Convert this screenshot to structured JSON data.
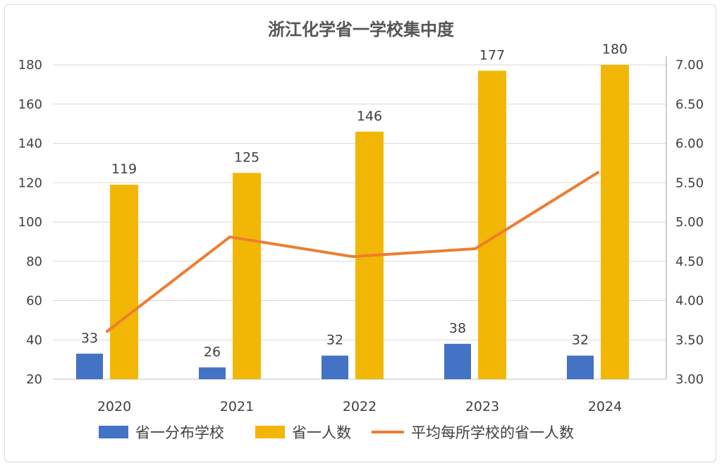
{
  "chart_data": {
    "type": "bar",
    "title": "浙江化学省一学校集中度",
    "categories": [
      "2020",
      "2021",
      "2022",
      "2023",
      "2024"
    ],
    "series": [
      {
        "name": "省一分布学校",
        "kind": "bar",
        "axis": "left",
        "color": "#4472C4",
        "values": [
          33,
          26,
          32,
          38,
          32
        ]
      },
      {
        "name": "省一人数",
        "kind": "bar",
        "axis": "left",
        "color": "#F2B705",
        "values": [
          119,
          125,
          146,
          177,
          180
        ]
      },
      {
        "name": "平均每所学校的省一人数",
        "kind": "line",
        "axis": "right",
        "color": "#ED7D31",
        "values": [
          3.61,
          4.81,
          4.56,
          4.66,
          5.63
        ]
      }
    ],
    "y_left": {
      "min": 20,
      "max": 180,
      "ticks": [
        "20",
        "40",
        "60",
        "80",
        "100",
        "120",
        "140",
        "160",
        "180"
      ]
    },
    "y_right": {
      "min": 3.0,
      "max": 7.0,
      "ticks": [
        "3.00",
        "3.50",
        "4.00",
        "4.50",
        "5.00",
        "5.50",
        "6.00",
        "6.50",
        "7.00"
      ]
    },
    "grid": true,
    "legend_position": "bottom"
  }
}
